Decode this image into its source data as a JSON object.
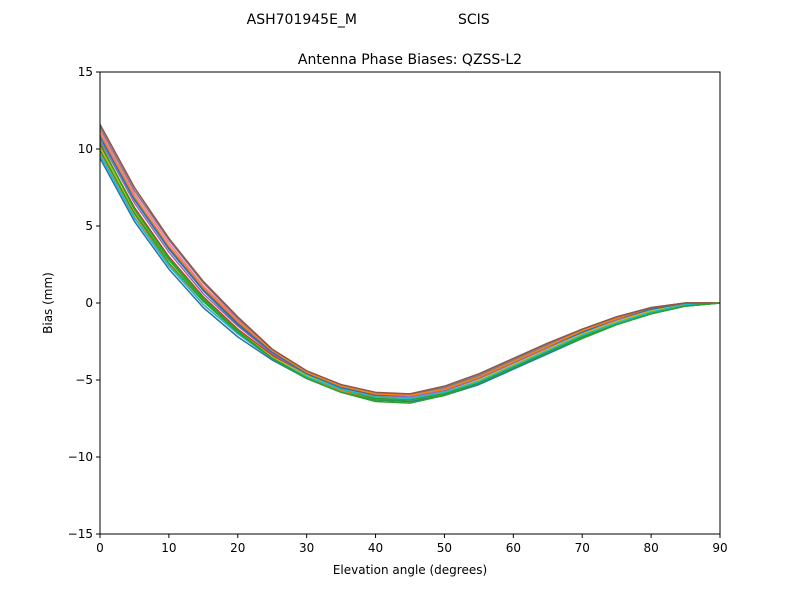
{
  "header": {
    "suptitle_left": "ASH701945E_M",
    "suptitle_right": "SCIS"
  },
  "chart_data": {
    "type": "line",
    "title": "Antenna Phase Biases: QZSS-L2",
    "xlabel": "Elevation angle (degrees)",
    "ylabel": "Bias (mm)",
    "xlim": [
      0,
      90
    ],
    "ylim": [
      -15,
      15
    ],
    "xticks": [
      0,
      10,
      20,
      30,
      40,
      50,
      60,
      70,
      80,
      90
    ],
    "yticks": [
      -15,
      -10,
      -5,
      0,
      5,
      10,
      15
    ],
    "grid": false,
    "legend": "none",
    "x": [
      0,
      5,
      10,
      15,
      20,
      25,
      30,
      35,
      40,
      45,
      50,
      55,
      60,
      65,
      70,
      75,
      80,
      85,
      90
    ],
    "series": [
      {
        "color": "#1f77b4",
        "values": [
          9.4,
          5.3,
          2.2,
          -0.3,
          -2.2,
          -3.7,
          -4.9,
          -5.7,
          -6.3,
          -6.4,
          -6.0,
          -5.3,
          -4.3,
          -3.3,
          -2.3,
          -1.4,
          -0.7,
          -0.2,
          0.0
        ]
      },
      {
        "color": "#ff7f0e",
        "values": [
          9.7,
          5.6,
          2.5,
          -0.1,
          -2.0,
          -3.6,
          -4.8,
          -5.7,
          -6.2,
          -6.3,
          -5.9,
          -5.2,
          -4.2,
          -3.2,
          -2.2,
          -1.3,
          -0.6,
          -0.1,
          0.0
        ]
      },
      {
        "color": "#2ca02c",
        "values": [
          10.0,
          5.9,
          2.8,
          0.2,
          -1.9,
          -3.5,
          -4.8,
          -5.6,
          -6.2,
          -6.2,
          -5.8,
          -5.1,
          -4.1,
          -3.1,
          -2.1,
          -1.2,
          -0.5,
          -0.1,
          0.0
        ]
      },
      {
        "color": "#d62728",
        "values": [
          10.3,
          6.2,
          3.0,
          0.4,
          -1.7,
          -3.4,
          -4.7,
          -5.6,
          -6.1,
          -6.2,
          -5.8,
          -5.0,
          -4.0,
          -3.0,
          -2.0,
          -1.2,
          -0.5,
          -0.1,
          0.0
        ]
      },
      {
        "color": "#9467bd",
        "values": [
          10.6,
          6.5,
          3.3,
          0.6,
          -1.5,
          -3.3,
          -4.6,
          -5.5,
          -6.0,
          -6.1,
          -5.7,
          -4.9,
          -3.9,
          -2.9,
          -1.9,
          -1.1,
          -0.4,
          0.0,
          0.0
        ]
      },
      {
        "color": "#8c564b",
        "values": [
          10.9,
          6.8,
          3.6,
          0.9,
          -1.3,
          -3.2,
          -4.6,
          -5.5,
          -6.0,
          -6.0,
          -5.6,
          -4.8,
          -3.8,
          -2.8,
          -1.8,
          -1.0,
          -0.4,
          0.0,
          0.0
        ]
      },
      {
        "color": "#e377c2",
        "values": [
          11.2,
          7.1,
          3.9,
          1.1,
          -1.1,
          -3.1,
          -4.5,
          -5.4,
          -5.9,
          -6.0,
          -5.5,
          -4.7,
          -3.7,
          -2.7,
          -1.8,
          -1.0,
          -0.3,
          0.0,
          0.0
        ]
      },
      {
        "color": "#7f7f7f",
        "values": [
          11.4,
          7.3,
          4.1,
          1.3,
          -1.0,
          -3.0,
          -4.5,
          -5.4,
          -5.9,
          -5.9,
          -5.5,
          -4.7,
          -3.7,
          -2.7,
          -1.7,
          -0.9,
          -0.3,
          0.0,
          0.0
        ]
      },
      {
        "color": "#bcbd22",
        "values": [
          10.1,
          6.0,
          2.9,
          0.3,
          -1.8,
          -3.5,
          -4.7,
          -5.6,
          -6.1,
          -6.2,
          -5.8,
          -5.0,
          -4.0,
          -3.0,
          -2.0,
          -1.2,
          -0.5,
          -0.1,
          0.0
        ]
      },
      {
        "color": "#17becf",
        "values": [
          9.6,
          5.5,
          2.4,
          -0.1,
          -2.0,
          -3.6,
          -4.8,
          -5.6,
          -6.1,
          -6.2,
          -5.8,
          -5.1,
          -4.1,
          -3.1,
          -2.1,
          -1.3,
          -0.6,
          -0.1,
          0.0
        ]
      },
      {
        "color": "#1f77b4",
        "values": [
          10.8,
          6.7,
          3.5,
          0.8,
          -1.4,
          -3.2,
          -4.6,
          -5.5,
          -5.9,
          -6.0,
          -5.6,
          -4.8,
          -3.8,
          -2.8,
          -1.9,
          -1.0,
          -0.4,
          0.0,
          0.0
        ]
      },
      {
        "color": "#ff7f0e",
        "values": [
          11.0,
          6.9,
          3.7,
          1.0,
          -1.2,
          -3.1,
          -4.5,
          -5.4,
          -5.9,
          -6.0,
          -5.6,
          -4.8,
          -3.8,
          -2.8,
          -1.8,
          -1.0,
          -0.3,
          0.0,
          0.0
        ]
      },
      {
        "color": "#2ca02c",
        "values": [
          9.9,
          5.8,
          2.6,
          0.1,
          -1.9,
          -3.6,
          -4.9,
          -5.8,
          -6.4,
          -6.5,
          -6.0,
          -5.2,
          -4.2,
          -3.2,
          -2.2,
          -1.4,
          -0.7,
          -0.2,
          0.0
        ]
      },
      {
        "color": "#8c564b",
        "values": [
          11.6,
          7.5,
          4.2,
          1.4,
          -0.9,
          -3.0,
          -4.4,
          -5.3,
          -5.8,
          -5.9,
          -5.4,
          -4.6,
          -3.6,
          -2.6,
          -1.7,
          -0.9,
          -0.3,
          0.0,
          0.0
        ]
      },
      {
        "color": "#2ca02c",
        "values": [
          10.4,
          6.1,
          2.9,
          0.3,
          -1.8,
          -3.6,
          -4.9,
          -5.8,
          -6.3,
          -6.3,
          -5.9,
          -5.2,
          -4.2,
          -3.2,
          -2.3,
          -1.4,
          -0.7,
          -0.2,
          0.0
        ]
      }
    ]
  }
}
